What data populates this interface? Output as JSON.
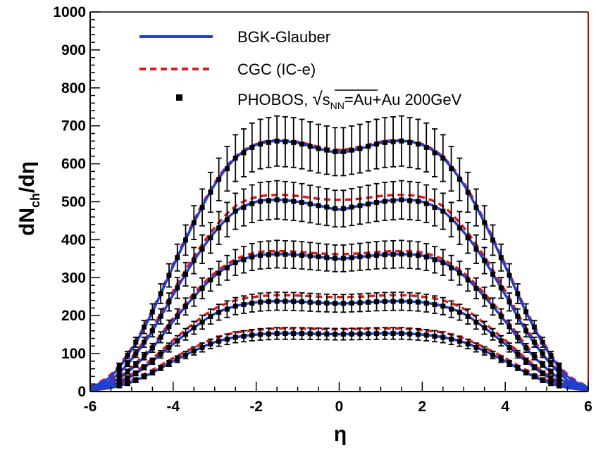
{
  "chart_data": {
    "type": "line",
    "title": "",
    "xlabel": "η",
    "ylabel": "dN_ch/dη",
    "xlim": [
      -6,
      6
    ],
    "ylim": [
      0,
      1000
    ],
    "xticks": [
      "-6",
      "-4",
      "-2",
      "0",
      "2",
      "4",
      "6"
    ],
    "yticks": [
      "0",
      "100",
      "200",
      "300",
      "400",
      "500",
      "600",
      "700",
      "800",
      "900",
      "1000"
    ],
    "grid": false,
    "legend_position": "top",
    "legend": {
      "bgk": "BGK-Glauber",
      "cgc": "CGC (IC-e)",
      "phobos_prefix": "PHOBOS, ",
      "sqrt_s": "s",
      "sqrt_sub": "NN",
      "phobos_suffix": "=Au+Au 200GeV"
    },
    "colors": {
      "bgk": "#1f3fd0",
      "cgc": "#e01818",
      "phobos": "#000000",
      "frame_right": "#c00000"
    },
    "series": [
      {
        "name": "BGK-Glauber",
        "style": "solid",
        "centralities": [
          {
            "x": [
              -6,
              -5.5,
              -5,
              -4.5,
              -4,
              -3.5,
              -3,
              -2.5,
              -2,
              -1.5,
              -1,
              -0.5,
              0,
              0.5,
              1,
              1.5,
              2,
              2.5,
              3,
              3.5,
              4,
              4.5,
              5,
              5.5,
              6
            ],
            "y": [
              10,
              40,
              110,
              210,
              330,
              445,
              545,
              615,
              650,
              660,
              655,
              640,
              630,
              640,
              655,
              660,
              650,
              615,
              545,
              445,
              330,
              210,
              110,
              40,
              10
            ]
          },
          {
            "x": [
              -6,
              -5.5,
              -5,
              -4.5,
              -4,
              -3.5,
              -3,
              -2.5,
              -2,
              -1.5,
              -1,
              -0.5,
              0,
              0.5,
              1,
              1.5,
              2,
              2.5,
              3,
              3.5,
              4,
              4.5,
              5,
              5.5,
              6
            ],
            "y": [
              8,
              30,
              85,
              160,
              255,
              345,
              420,
              475,
              500,
              505,
              500,
              490,
              480,
              490,
              500,
              505,
              500,
              475,
              420,
              345,
              255,
              160,
              85,
              30,
              8
            ]
          },
          {
            "x": [
              -6,
              -5.5,
              -5,
              -4.5,
              -4,
              -3.5,
              -3,
              -2.5,
              -2,
              -1.5,
              -1,
              -0.5,
              0,
              0.5,
              1,
              1.5,
              2,
              2.5,
              3,
              3.5,
              4,
              4.5,
              5,
              5.5,
              6
            ],
            "y": [
              6,
              22,
              60,
              115,
              185,
              250,
              305,
              340,
              358,
              362,
              360,
              355,
              350,
              355,
              360,
              362,
              358,
              340,
              305,
              250,
              185,
              115,
              60,
              22,
              6
            ]
          },
          {
            "x": [
              -6,
              -5.5,
              -5,
              -4.5,
              -4,
              -3.5,
              -3,
              -2.5,
              -2,
              -1.5,
              -1,
              -0.5,
              0,
              0.5,
              1,
              1.5,
              2,
              2.5,
              3,
              3.5,
              4,
              4.5,
              5,
              5.5,
              6
            ],
            "y": [
              4,
              15,
              40,
              80,
              125,
              168,
              205,
              225,
              235,
              238,
              237,
              234,
              232,
              234,
              237,
              238,
              235,
              225,
              205,
              168,
              125,
              80,
              40,
              15,
              4
            ]
          },
          {
            "x": [
              -6,
              -5.5,
              -5,
              -4.5,
              -4,
              -3.5,
              -3,
              -2.5,
              -2,
              -1.5,
              -1,
              -0.5,
              0,
              0.5,
              1,
              1.5,
              2,
              2.5,
              3,
              3.5,
              4,
              4.5,
              5,
              5.5,
              6
            ],
            "y": [
              3,
              10,
              25,
              50,
              80,
              107,
              130,
              143,
              150,
              153,
              153,
              152,
              151,
              152,
              153,
              153,
              150,
              143,
              130,
              107,
              80,
              50,
              25,
              10,
              3
            ]
          }
        ]
      },
      {
        "name": "CGC (IC-e)",
        "style": "dashed",
        "centralities": [
          {
            "x": [
              -6,
              -5.5,
              -5,
              -4.5,
              -4,
              -3.5,
              -3,
              -2.5,
              -2,
              -1.5,
              -1,
              -0.5,
              0,
              0.5,
              1,
              1.5,
              2,
              2.5,
              3,
              3.5,
              4,
              4.5,
              5,
              5.5,
              6
            ],
            "y": [
              12,
              45,
              115,
              215,
              335,
              450,
              550,
              618,
              652,
              662,
              658,
              645,
              637,
              645,
              658,
              662,
              652,
              618,
              550,
              450,
              335,
              215,
              115,
              45,
              12
            ]
          },
          {
            "x": [
              -6,
              -5.5,
              -5,
              -4.5,
              -4,
              -3.5,
              -3,
              -2.5,
              -2,
              -1.5,
              -1,
              -0.5,
              0,
              0.5,
              1,
              1.5,
              2,
              2.5,
              3,
              3.5,
              4,
              4.5,
              5,
              5.5,
              6
            ],
            "y": [
              10,
              34,
              90,
              168,
              265,
              355,
              432,
              488,
              512,
              518,
              515,
              508,
              505,
              508,
              515,
              518,
              512,
              488,
              432,
              355,
              265,
              168,
              90,
              34,
              10
            ]
          },
          {
            "x": [
              -6,
              -5.5,
              -5,
              -4.5,
              -4,
              -3.5,
              -3,
              -2.5,
              -2,
              -1.5,
              -1,
              -0.5,
              0,
              0.5,
              1,
              1.5,
              2,
              2.5,
              3,
              3.5,
              4,
              4.5,
              5,
              5.5,
              6
            ],
            "y": [
              8,
              25,
              65,
              122,
              193,
              258,
              312,
              348,
              366,
              370,
              368,
              364,
              362,
              364,
              368,
              370,
              366,
              348,
              312,
              258,
              193,
              122,
              65,
              25,
              8
            ]
          },
          {
            "x": [
              -6,
              -5.5,
              -5,
              -4.5,
              -4,
              -3.5,
              -3,
              -2.5,
              -2,
              -1.5,
              -1,
              -0.5,
              0,
              0.5,
              1,
              1.5,
              2,
              2.5,
              3,
              3.5,
              4,
              4.5,
              5,
              5.5,
              6
            ],
            "y": [
              6,
              18,
              45,
              87,
              135,
              180,
              218,
              240,
              250,
              254,
              253,
              250,
              249,
              250,
              253,
              254,
              250,
              240,
              218,
              180,
              135,
              87,
              45,
              18,
              6
            ]
          },
          {
            "x": [
              -6,
              -5.5,
              -5,
              -4.5,
              -4,
              -3.5,
              -3,
              -2.5,
              -2,
              -1.5,
              -1,
              -0.5,
              0,
              0.5,
              1,
              1.5,
              2,
              2.5,
              3,
              3.5,
              4,
              4.5,
              5,
              5.5,
              6
            ],
            "y": [
              5,
              13,
              30,
              57,
              88,
              116,
              140,
              155,
              162,
              166,
              166,
              165,
              164,
              165,
              166,
              166,
              162,
              155,
              140,
              116,
              88,
              57,
              30,
              13,
              5
            ]
          }
        ]
      },
      {
        "name": "PHOBOS",
        "style": "points",
        "x": [
          -5.3,
          -5.1,
          -4.9,
          -4.7,
          -4.5,
          -4.3,
          -4.1,
          -3.9,
          -3.7,
          -3.5,
          -3.3,
          -3.1,
          -2.9,
          -2.7,
          -2.5,
          -2.3,
          -2.1,
          -1.9,
          -1.7,
          -1.5,
          -1.3,
          -1.1,
          -0.9,
          -0.7,
          -0.5,
          -0.3,
          -0.1,
          0.1,
          0.3,
          0.5,
          0.7,
          0.9,
          1.1,
          1.3,
          1.5,
          1.7,
          1.9,
          2.1,
          2.3,
          2.5,
          2.7,
          2.9,
          3.1,
          3.3,
          3.5,
          3.7,
          3.9,
          4.1,
          4.3,
          4.5,
          4.7,
          4.9,
          5.1,
          5.3
        ],
        "error_fraction": 0.1
      }
    ]
  }
}
